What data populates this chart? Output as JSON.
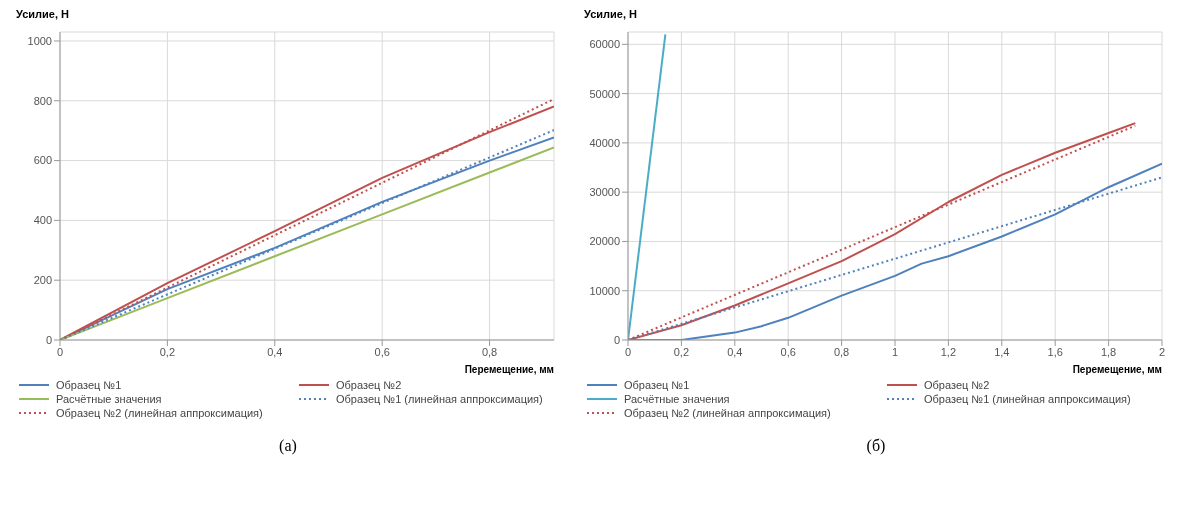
{
  "chart_data": [
    {
      "type": "line",
      "ylabel": "Усилие, Н",
      "xlabel": "Перемещение, мм",
      "xlim": [
        0,
        0.92
      ],
      "xticks": [
        0,
        {
          "value": 0.2,
          "label": "0,2"
        },
        {
          "value": 0.4,
          "label": "0,4"
        },
        {
          "value": 0.6,
          "label": "0,6"
        },
        {
          "value": 0.8,
          "label": "0,8"
        }
      ],
      "ylim": [
        0,
        1030
      ],
      "yticks": [
        0,
        200,
        400,
        600,
        800,
        1000
      ],
      "grid": true,
      "legend": "bottom",
      "line_style": "solid",
      "annotations": [
        "(а)"
      ],
      "series": [
        {
          "name": "Образец №1",
          "color": "#4f81bd",
          "x": [
            0,
            0.2,
            0.4,
            0.6,
            0.8,
            0.92
          ],
          "values": [
            0,
            170,
            308,
            462,
            600,
            677
          ]
        },
        {
          "name": "Образец №2",
          "color": "#c0504d",
          "x": [
            0,
            0.2,
            0.4,
            0.6,
            0.8,
            0.92
          ],
          "values": [
            0,
            190,
            364,
            542,
            695,
            781
          ]
        },
        {
          "name": "Расчётные значения",
          "color": "#9bbb59",
          "x": [
            0,
            0.2,
            0.4,
            0.6,
            0.8,
            0.92
          ],
          "values": [
            0,
            140,
            280,
            420,
            560,
            644
          ]
        },
        {
          "name": "Образец №1 (линейная аппроксимация)",
          "color": "#4f81bd",
          "line_style": "dotted",
          "x": [
            0,
            0.92
          ],
          "values": [
            0,
            702
          ]
        },
        {
          "name": "Образец №2 (линейная аппроксимация)",
          "color": "#c0504d",
          "line_style": "dotted",
          "x": [
            0,
            0.92
          ],
          "values": [
            0,
            806
          ]
        }
      ]
    },
    {
      "type": "line",
      "ylabel": "Усилие, Н",
      "xlabel": "Перемещение, мм",
      "xlim": [
        0,
        2
      ],
      "xticks": [
        0,
        {
          "value": 0.2,
          "label": "0,2"
        },
        {
          "value": 0.4,
          "label": "0,4"
        },
        {
          "value": 0.6,
          "label": "0,6"
        },
        {
          "value": 0.8,
          "label": "0,8"
        },
        1,
        {
          "value": 1.2,
          "label": "1,2"
        },
        {
          "value": 1.4,
          "label": "1,4"
        },
        {
          "value": 1.6,
          "label": "1,6"
        },
        {
          "value": 1.8,
          "label": "1,8"
        },
        2
      ],
      "ylim": [
        0,
        62500
      ],
      "yticks": [
        0,
        10000,
        20000,
        30000,
        40000,
        50000,
        60000
      ],
      "grid": true,
      "legend": "bottom",
      "line_style": "solid",
      "annotations": [
        "(б)"
      ],
      "series": [
        {
          "name": "Образец №1",
          "color": "#4f81bd",
          "x": [
            0,
            0.2,
            0.4,
            0.5,
            0.6,
            0.8,
            1.0,
            1.1,
            1.2,
            1.4,
            1.6,
            1.8,
            2.0
          ],
          "values": [
            0,
            0,
            1500,
            2800,
            4500,
            9000,
            13000,
            15500,
            17000,
            21000,
            25500,
            31000,
            35800
          ]
        },
        {
          "name": "Образец №2",
          "color": "#c0504d",
          "x": [
            0,
            0.2,
            0.4,
            0.6,
            0.8,
            1.0,
            1.2,
            1.4,
            1.6,
            1.8,
            1.9
          ],
          "values": [
            0,
            3000,
            7000,
            11500,
            16000,
            21500,
            28000,
            33500,
            38000,
            42000,
            44000
          ]
        },
        {
          "name": "Расчётные значения",
          "color": "#4bacc6",
          "x": [
            0,
            0.14
          ],
          "values": [
            0,
            62000
          ]
        },
        {
          "name": "Образец №1 (линейная аппроксимация)",
          "color": "#4f81bd",
          "line_style": "dotted",
          "x": [
            0,
            2
          ],
          "values": [
            0,
            33000
          ]
        },
        {
          "name": "Образец №2 (линейная аппроксимация)",
          "color": "#c0504d",
          "line_style": "dotted",
          "x": [
            0,
            1.9
          ],
          "values": [
            0,
            43500
          ]
        }
      ]
    }
  ]
}
